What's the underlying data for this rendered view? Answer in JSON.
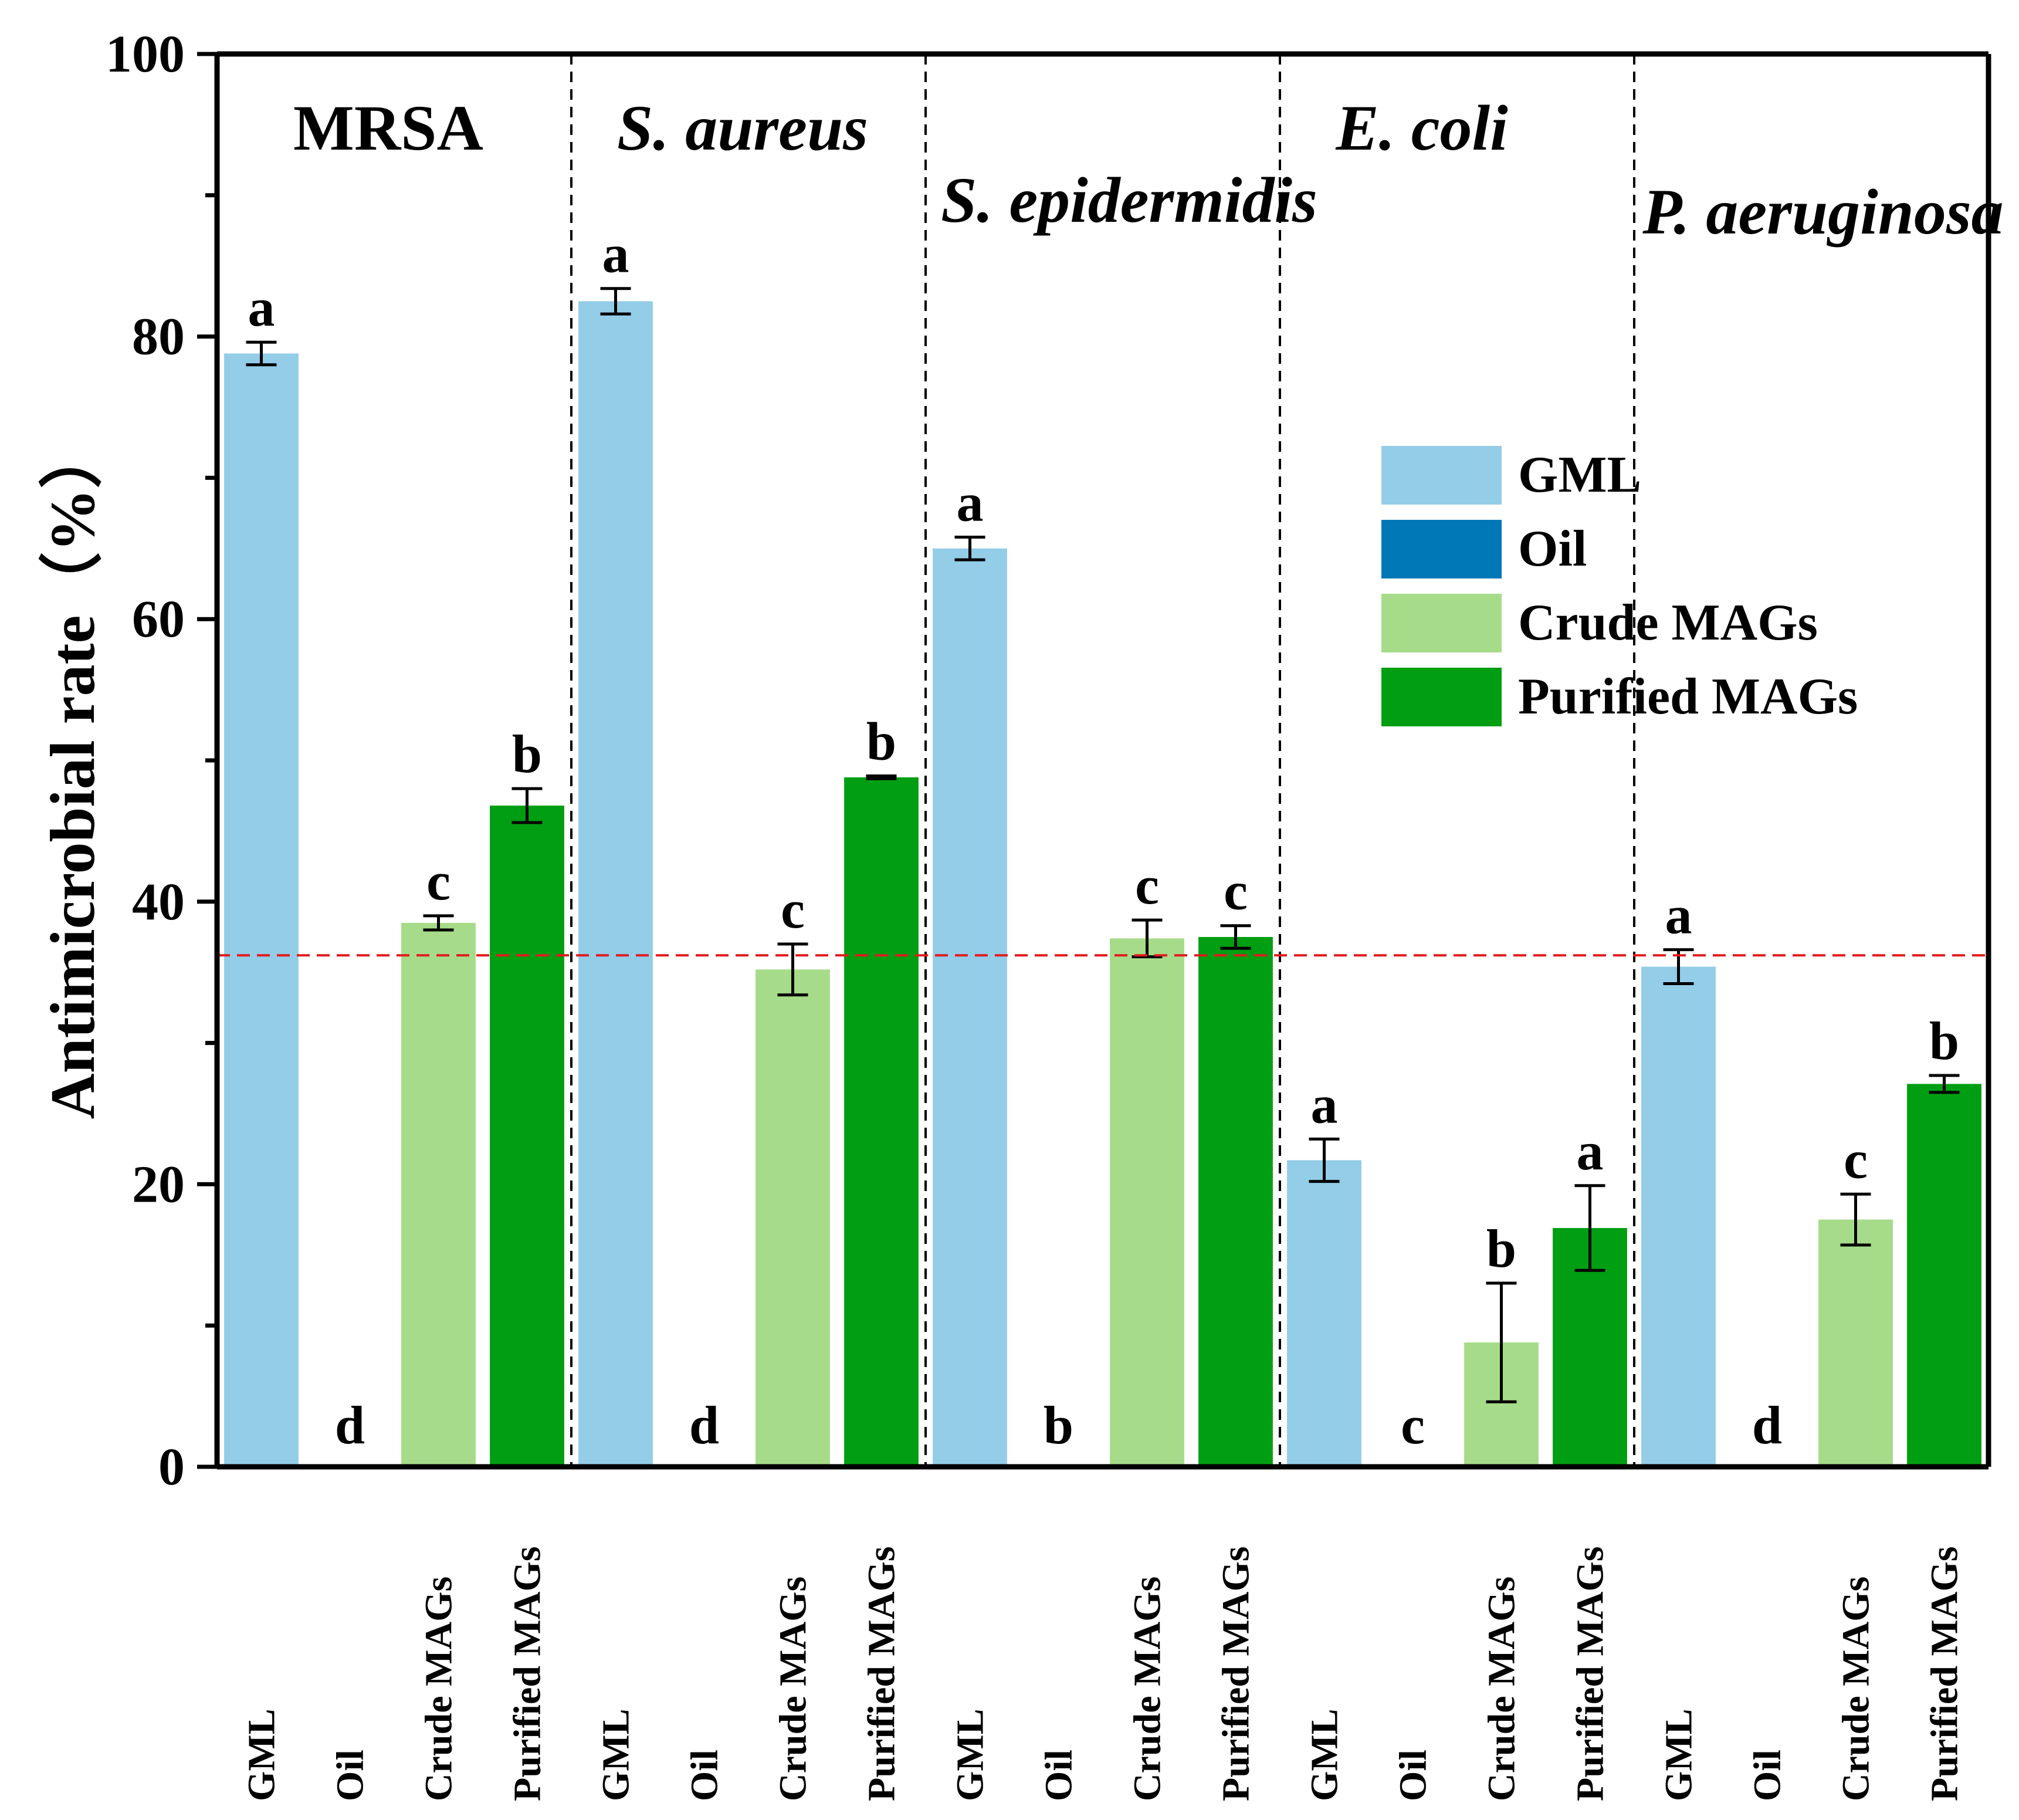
{
  "chart_data": {
    "type": "bar",
    "ylabel": "Antimicrobial rate（%）",
    "ylim": [
      0,
      100
    ],
    "yticks": [
      0,
      20,
      40,
      60,
      80,
      100
    ],
    "threshold": 36.2,
    "threshold_color": "#e41a1c",
    "series": [
      {
        "name": "GML",
        "color": "#93cde8"
      },
      {
        "name": "Oil",
        "color": "#0077b6"
      },
      {
        "name": "Crude MAGs",
        "color": "#a6dc89"
      },
      {
        "name": "Purified MAGs",
        "color": "#009e12"
      }
    ],
    "groups": [
      {
        "name": "MRSA",
        "italic": false,
        "bars": [
          {
            "series": "GML",
            "label": "GML",
            "value": 78.8,
            "error": 0.8,
            "sig": "a"
          },
          {
            "series": "Oil",
            "label": "Oil",
            "value": 0,
            "error": 0,
            "sig": "d"
          },
          {
            "series": "Crude MAGs",
            "label": "Crude MAGs",
            "value": 38.5,
            "error": 0.5,
            "sig": "c"
          },
          {
            "series": "Purified MAGs",
            "label": "Purified MAGs",
            "value": 46.8,
            "error": 1.2,
            "sig": "b"
          }
        ]
      },
      {
        "name": "S. aureus",
        "italic": true,
        "bars": [
          {
            "series": "GML",
            "label": "GML",
            "value": 82.5,
            "error": 0.9,
            "sig": "a"
          },
          {
            "series": "Oil",
            "label": "Oil",
            "value": 0,
            "error": 0,
            "sig": "d"
          },
          {
            "series": "Crude MAGs",
            "label": "Crude MAGs",
            "value": 35.2,
            "error": 1.8,
            "sig": "c"
          },
          {
            "series": "Purified MAGs",
            "label": "Purified MAGs",
            "value": 48.8,
            "error": 0.1,
            "sig": "b"
          }
        ]
      },
      {
        "name": "S. epidermidis",
        "italic": true,
        "bars": [
          {
            "series": "GML",
            "label": "GML",
            "value": 65.0,
            "error": 0.8,
            "sig": "a"
          },
          {
            "series": "Oil",
            "label": "Oil",
            "value": 0,
            "error": 0,
            "sig": "b"
          },
          {
            "series": "Crude MAGs",
            "label": "Crude MAGs",
            "value": 37.4,
            "error": 1.3,
            "sig": "c"
          },
          {
            "series": "Purified MAGs",
            "label": "Purified MAGs",
            "value": 37.5,
            "error": 0.8,
            "sig": "c"
          }
        ]
      },
      {
        "name": "E. coli",
        "italic": true,
        "bars": [
          {
            "series": "GML",
            "label": "GML",
            "value": 21.7,
            "error": 1.5,
            "sig": "a"
          },
          {
            "series": "Oil",
            "label": "Oil",
            "value": 0,
            "error": 0,
            "sig": "c"
          },
          {
            "series": "Crude MAGs",
            "label": "Crude MAGs",
            "value": 8.8,
            "error": 4.2,
            "sig": "b"
          },
          {
            "series": "Purified MAGs",
            "label": "Purified MAGs",
            "value": 16.9,
            "error": 3.0,
            "sig": "a"
          }
        ]
      },
      {
        "name": "P. aeruginosa",
        "italic": true,
        "bars": [
          {
            "series": "GML",
            "label": "GML",
            "value": 35.4,
            "error": 1.2,
            "sig": "a"
          },
          {
            "series": "Oil",
            "label": "Oil",
            "value": 0,
            "error": 0,
            "sig": "d"
          },
          {
            "series": "Crude MAGs",
            "label": "Crude MAGs",
            "value": 17.5,
            "error": 1.8,
            "sig": "c"
          },
          {
            "series": "Purified MAGs",
            "label": "Purified MAGs",
            "value": 27.1,
            "error": 0.6,
            "sig": "b"
          }
        ]
      }
    ],
    "legend": {
      "position": "right",
      "entries": [
        "GML",
        "Oil",
        "Crude MAGs",
        "Purified MAGs"
      ]
    }
  }
}
